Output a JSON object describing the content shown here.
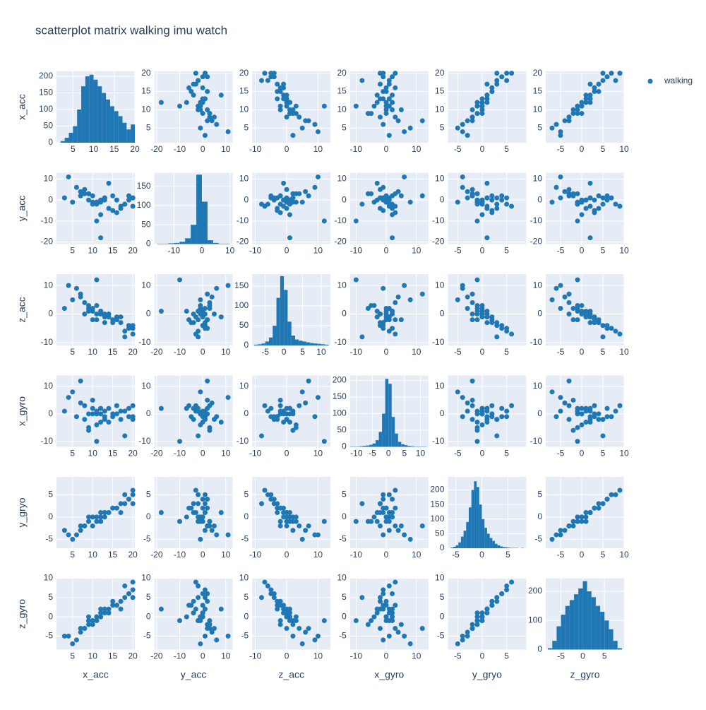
{
  "chart_data": {
    "type": "splom",
    "title": "scatterplot matrix walking imu watch",
    "series": [
      {
        "name": "walking",
        "color": "#1f77b4"
      }
    ],
    "grid": true,
    "legend": "top-right",
    "dimensions": [
      {
        "label": "x_acc",
        "lim": [
          1,
          20.5
        ],
        "ticks": [
          5,
          10,
          15,
          20
        ],
        "values": [
          9,
          11,
          13,
          8,
          15,
          19,
          10,
          12,
          7,
          17,
          20,
          6,
          14,
          10,
          11,
          16,
          18,
          9,
          12,
          13,
          5,
          8,
          20,
          15,
          11,
          3,
          19,
          10,
          14,
          12,
          7,
          17,
          13,
          9,
          16,
          20,
          11,
          4,
          18,
          12
        ],
        "hist": {
          "bins": [
            2,
            3,
            4,
            5,
            6,
            7,
            8,
            9,
            10,
            11,
            12,
            13,
            14,
            15,
            16,
            17,
            18,
            19,
            20
          ],
          "counts": [
            5,
            15,
            30,
            50,
            100,
            170,
            200,
            205,
            190,
            170,
            150,
            130,
            110,
            95,
            80,
            60,
            40,
            55
          ],
          "xlim": [
            1,
            20
          ],
          "xticks": [
            5,
            10,
            15,
            20
          ],
          "ylim": [
            0,
            215
          ],
          "yticks": [
            0,
            50,
            100,
            150,
            200
          ]
        }
      },
      {
        "label": "y_acc",
        "lim": [
          -21,
          13
        ],
        "ticks": [
          -20,
          -10,
          0,
          10
        ],
        "values": [
          0,
          -2,
          1,
          3,
          -5,
          2,
          -1,
          0,
          4,
          -3,
          1,
          6,
          -4,
          2,
          -1,
          0,
          -2,
          3,
          -7,
          1,
          -1,
          5,
          -3,
          2,
          -10,
          1,
          0,
          -2,
          8,
          -1,
          2,
          -4,
          0,
          3,
          -6,
          1,
          -1,
          11,
          -2,
          -18
        ],
        "hist": {
          "bins": [
            -16,
            -14,
            -12,
            -10,
            -8,
            -6,
            -4,
            -2,
            0,
            2,
            4,
            6,
            8,
            10
          ],
          "counts": [
            1,
            1,
            2,
            3,
            6,
            15,
            50,
            180,
            110,
            10,
            3,
            1,
            1
          ],
          "xlim": [
            -17,
            11
          ],
          "xticks": [
            -10,
            0,
            10
          ],
          "ylim": [
            0,
            185
          ],
          "yticks": [
            0,
            50,
            100,
            150
          ]
        }
      },
      {
        "label": "z_acc",
        "lim": [
          -11,
          14
        ],
        "ticks": [
          -10,
          0,
          10
        ],
        "values": [
          1,
          -2,
          0,
          4,
          -3,
          -5,
          2,
          1,
          6,
          -1,
          -4,
          9,
          0,
          -2,
          3,
          -1,
          -6,
          2,
          1,
          -3,
          5,
          0,
          -7,
          -2,
          12,
          2,
          -4,
          1,
          -1,
          0,
          7,
          -3,
          -1,
          3,
          -2,
          -5,
          0,
          10,
          -8,
          1
        ],
        "hist": {
          "bins": [
            -8,
            -7,
            -6,
            -5,
            -4,
            -3,
            -2,
            -1,
            0,
            1,
            2,
            3,
            4,
            5,
            6,
            7,
            8,
            9,
            10,
            11,
            12
          ],
          "counts": [
            2,
            3,
            5,
            10,
            20,
            50,
            120,
            175,
            140,
            60,
            25,
            15,
            12,
            10,
            8,
            6,
            5,
            4,
            3,
            2
          ],
          "xlim": [
            -8.5,
            12.5
          ],
          "xticks": [
            -5,
            0,
            5,
            10
          ],
          "ylim": [
            0,
            180
          ],
          "yticks": [
            0,
            50,
            100,
            150
          ]
        }
      },
      {
        "label": "x_gyro",
        "lim": [
          -12,
          14
        ],
        "ticks": [
          -10,
          0,
          10
        ],
        "values": [
          0,
          1,
          -2,
          3,
          -1,
          2,
          0,
          -3,
          4,
          1,
          -2,
          -1,
          2,
          5,
          -4,
          0,
          1,
          -6,
          2,
          -1,
          8,
          -2,
          3,
          0,
          -10,
          1,
          -1,
          2,
          -3,
          0,
          12,
          -2,
          1,
          -5,
          3,
          -1,
          0,
          6,
          -8,
          2
        ],
        "hist": {
          "bins": [
            -12,
            -11,
            -10,
            -9,
            -8,
            -7,
            -6,
            -5,
            -4,
            -3,
            -2,
            -1,
            0,
            1,
            2,
            3,
            4,
            5,
            6,
            7,
            8,
            9,
            10,
            11,
            12
          ],
          "counts": [
            1,
            1,
            1,
            2,
            3,
            4,
            6,
            10,
            20,
            45,
            100,
            205,
            190,
            90,
            40,
            15,
            8,
            5,
            3,
            2,
            1,
            1,
            1,
            1
          ],
          "xlim": [
            -12,
            12.5
          ],
          "xticks": [
            -10,
            -5,
            0,
            5,
            10
          ],
          "ylim": [
            0,
            215
          ],
          "yticks": [
            0,
            50,
            100,
            150,
            200
          ]
        }
      },
      {
        "label": "y_gryo",
        "lim": [
          -7,
          9
        ],
        "ticks": [
          -5,
          0,
          5
        ],
        "values": [
          0,
          -1,
          1,
          -2,
          2,
          4,
          0,
          -1,
          -3,
          1,
          3,
          -4,
          1,
          -2,
          0,
          2,
          5,
          -1,
          0,
          1,
          -5,
          -2,
          6,
          2,
          -1,
          -3,
          4,
          0,
          1,
          -1,
          -2,
          3,
          0,
          -1,
          2,
          5,
          0,
          -4,
          3,
          1
        ],
        "hist": {
          "bins": [
            -6,
            -5.5,
            -5,
            -4.5,
            -4,
            -3.5,
            -3,
            -2.5,
            -2,
            -1.5,
            -1,
            -0.5,
            0,
            0.5,
            1,
            1.5,
            2,
            2.5,
            3,
            3.5,
            4,
            4.5,
            5,
            5.5,
            6,
            6.5,
            7,
            7.5,
            8
          ],
          "counts": [
            2,
            5,
            10,
            20,
            40,
            60,
            90,
            140,
            200,
            230,
            210,
            150,
            100,
            70,
            50,
            35,
            25,
            15,
            10,
            6,
            4,
            3,
            2,
            1,
            1,
            1,
            0,
            1
          ],
          "xlim": [
            -6.5,
            8.5
          ],
          "xticks": [
            -5,
            0,
            5
          ],
          "ylim": [
            0,
            245
          ],
          "yticks": [
            0,
            50,
            100,
            150,
            200
          ]
        }
      },
      {
        "label": "z_gyro",
        "lim": [
          -8.5,
          10
        ],
        "ticks": [
          -5,
          0,
          5,
          10
        ],
        "values": [
          0,
          -1,
          2,
          -3,
          3,
          6,
          -1,
          1,
          -4,
          2,
          5,
          -6,
          1,
          -2,
          0,
          3,
          8,
          -2,
          0,
          2,
          -7,
          -3,
          9,
          4,
          -1,
          -5,
          6,
          -1,
          2,
          0,
          -3,
          4,
          1,
          -1,
          3,
          7,
          0,
          -5,
          5,
          2
        ],
        "hist": {
          "bins": [
            -8,
            -7,
            -6,
            -5,
            -4,
            -3,
            -2,
            -1,
            0,
            1,
            2,
            3,
            4,
            5,
            6,
            7,
            8,
            9
          ],
          "counts": [
            5,
            30,
            80,
            120,
            150,
            170,
            190,
            210,
            235,
            200,
            180,
            150,
            130,
            100,
            70,
            30,
            5
          ],
          "xlim": [
            -8.5,
            9.5
          ],
          "xticks": [
            -5,
            0,
            5
          ],
          "ylim": [
            0,
            245
          ],
          "yticks": [
            0,
            100,
            200
          ]
        }
      }
    ]
  }
}
